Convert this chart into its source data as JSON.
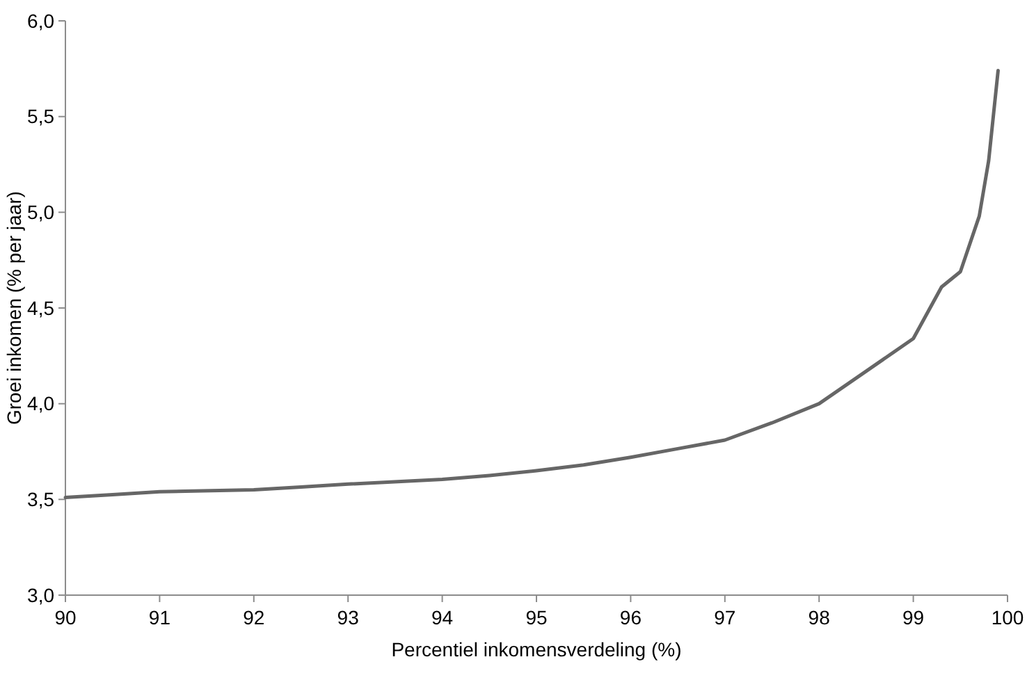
{
  "chart_data": {
    "type": "line",
    "xlabel": "Percentiel inkomensverdeling (%)",
    "ylabel": "Groei inkomen (% per jaar)",
    "x": [
      90,
      90.5,
      91,
      92,
      92.5,
      93,
      94,
      94.5,
      95,
      95.5,
      96,
      96.5,
      97,
      97.5,
      98,
      98.5,
      99,
      99.3,
      99.5,
      99.7,
      99.8,
      99.9
    ],
    "series": [
      {
        "color": "#666666",
        "values": [
          3.51,
          3.525,
          3.54,
          3.55,
          3.565,
          3.58,
          3.605,
          3.625,
          3.65,
          3.68,
          3.72,
          3.765,
          3.81,
          3.9,
          4.0,
          4.17,
          4.34,
          4.61,
          4.69,
          4.98,
          5.27,
          5.74
        ]
      }
    ],
    "xlim": [
      90,
      100
    ],
    "xticks": [
      90,
      91,
      92,
      93,
      94,
      95,
      96,
      97,
      98,
      99,
      100
    ],
    "ylim": [
      3,
      6
    ],
    "yticks": [
      {
        "value": 3,
        "label": "3,0"
      },
      {
        "value": 3.5,
        "label": "3,5"
      },
      {
        "value": 4,
        "label": "4,0"
      },
      {
        "value": 4.5,
        "label": "4,5"
      },
      {
        "value": 5,
        "label": "5,0"
      },
      {
        "value": 5.5,
        "label": "5,5"
      },
      {
        "value": 6,
        "label": "6,0"
      }
    ],
    "grid": false,
    "marker": "none",
    "line_style": "solid"
  }
}
